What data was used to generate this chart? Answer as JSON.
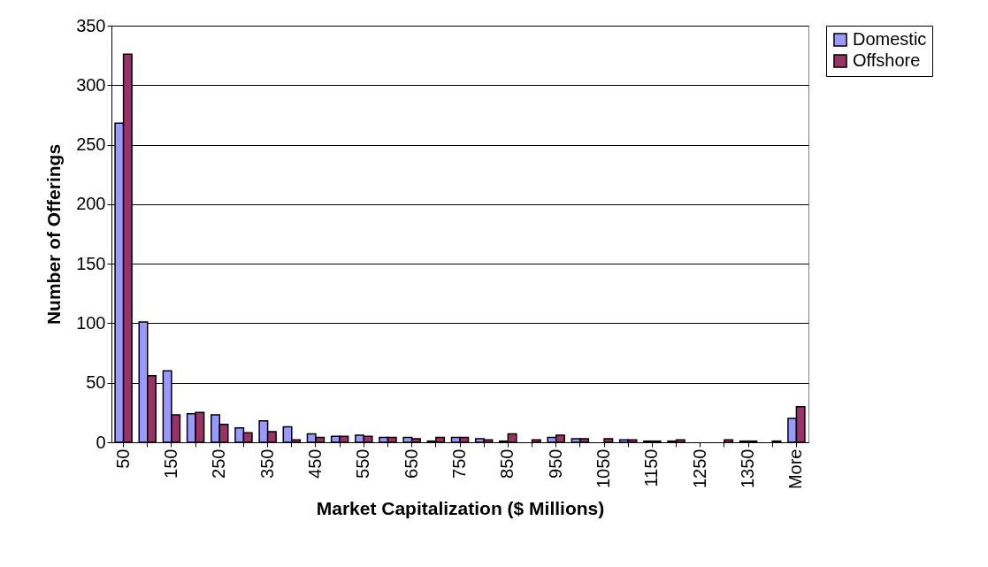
{
  "chart_data": {
    "type": "bar",
    "xlabel": "Market Capitalization ($ Millions)",
    "ylabel": "Number of Offerings",
    "categories": [
      "50",
      null,
      "150",
      null,
      "250",
      null,
      "350",
      null,
      "450",
      null,
      "550",
      null,
      "650",
      null,
      "750",
      null,
      "850",
      null,
      "950",
      null,
      "1050",
      null,
      "1150",
      null,
      "1250",
      null,
      "1350",
      null,
      "More"
    ],
    "series": [
      {
        "name": "Domestic",
        "color": "#9999ff",
        "values": [
          268,
          101,
          60,
          24,
          23,
          12,
          18,
          13,
          7,
          5,
          6,
          4,
          4,
          1,
          4,
          3,
          1,
          0,
          4,
          3,
          0,
          2,
          1,
          1,
          0,
          0,
          1,
          0,
          20
        ]
      },
      {
        "name": "Offshore",
        "color": "#993366",
        "values": [
          326,
          56,
          23,
          25,
          15,
          8,
          9,
          2,
          4,
          5,
          5,
          4,
          3,
          4,
          4,
          2,
          7,
          2,
          6,
          3,
          3,
          2,
          1,
          2,
          0,
          2,
          1,
          1,
          30
        ]
      }
    ],
    "ylim": [
      0,
      350
    ],
    "yticks": [
      0,
      50,
      100,
      150,
      200,
      250,
      300,
      350
    ],
    "grid": "y",
    "legend": "right"
  }
}
